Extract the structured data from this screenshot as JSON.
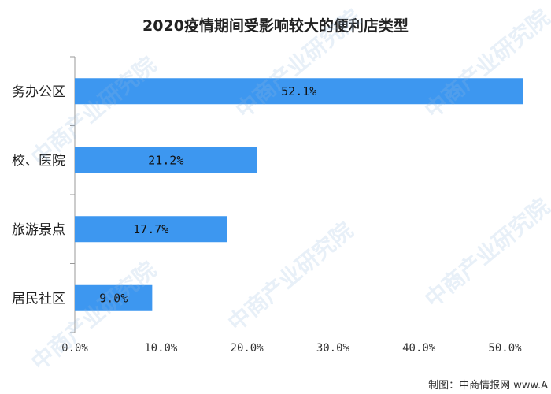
{
  "chart_data": {
    "type": "bar",
    "orientation": "horizontal",
    "title": "2020疫情期间受影响较大的便利店类型",
    "categories": [
      "务办公区",
      "校、医院",
      "旅游景点",
      "居民社区"
    ],
    "values": [
      52.1,
      21.2,
      17.7,
      9.0
    ],
    "value_labels": [
      "52.1%",
      "21.2%",
      "17.7%",
      "9.0%"
    ],
    "xlim": [
      0,
      55
    ],
    "xticks": [
      0,
      10,
      20,
      30,
      40,
      50
    ],
    "xtick_labels": [
      "0.0%",
      "10.0%",
      "20.0%",
      "30.0%",
      "40.0%",
      "50.0%"
    ],
    "grid": false,
    "bar_color": "#3d97f0"
  },
  "watermark_text": "中商产业研究院",
  "source": "制图：中商情报网 www.A"
}
